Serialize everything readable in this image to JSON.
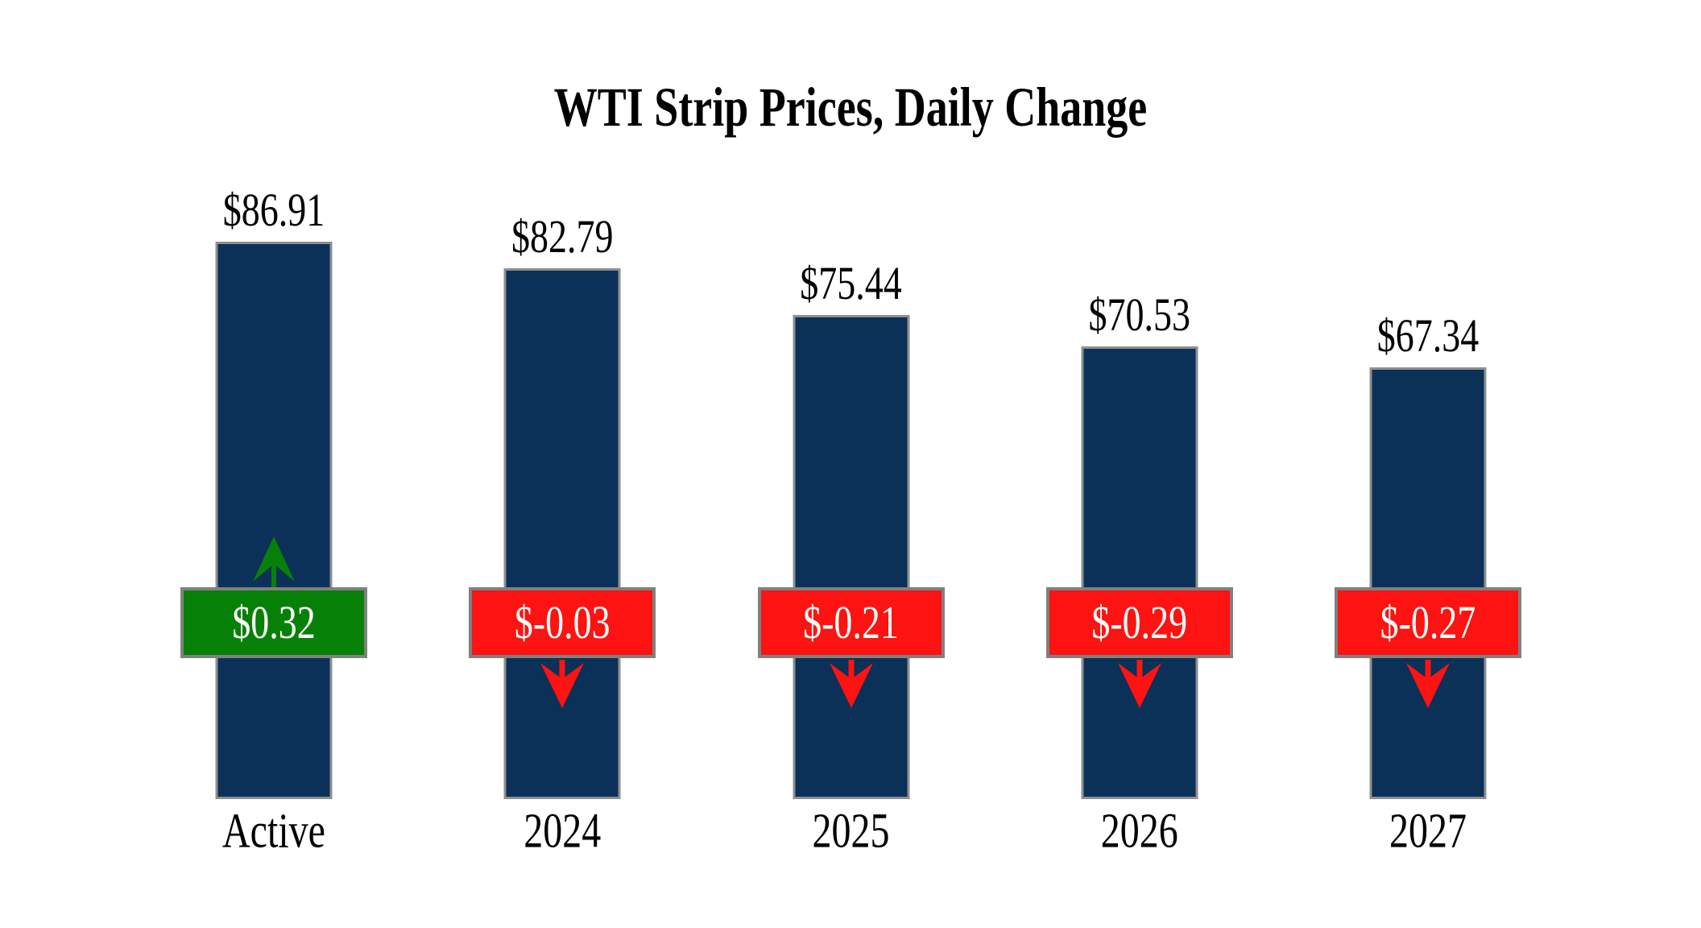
{
  "page": {
    "background": "#ffffff"
  },
  "chart_data": {
    "type": "bar",
    "title": "WTI Strip Prices, Daily Change",
    "categories": [
      "Active",
      "2024",
      "2025",
      "2026",
      "2027"
    ],
    "values": [
      86.91,
      82.79,
      75.44,
      70.53,
      67.34
    ],
    "xlabel": "",
    "ylabel": "",
    "ylim": [
      0,
      90
    ],
    "grid": false,
    "legend_position": "none",
    "bars": [
      {
        "category": "Active",
        "price": 86.91,
        "price_label": "$86.91",
        "change": 0.32,
        "change_label": "$0.32",
        "direction": "up"
      },
      {
        "category": "2024",
        "price": 82.79,
        "price_label": "$82.79",
        "change": -0.03,
        "change_label": "$-0.03",
        "direction": "down"
      },
      {
        "category": "2025",
        "price": 75.44,
        "price_label": "$75.44",
        "change": -0.21,
        "change_label": "$-0.21",
        "direction": "down"
      },
      {
        "category": "2026",
        "price": 70.53,
        "price_label": "$70.53",
        "change": -0.29,
        "change_label": "$-0.29",
        "direction": "down"
      },
      {
        "category": "2027",
        "price": 67.34,
        "price_label": "$67.34",
        "change": -0.27,
        "change_label": "$-0.27",
        "direction": "down"
      }
    ],
    "colors": {
      "bar_fill": "#0b3158",
      "bar_border": "#8f8f8f",
      "positive": "#078007",
      "negative": "#fd1311",
      "badge_border": "#808080",
      "badge_text": "#ffffff",
      "title_text": "#000000"
    }
  }
}
